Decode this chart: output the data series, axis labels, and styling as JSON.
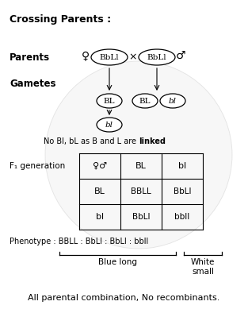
{
  "title": "Crossing Parents :",
  "bg_color": "#ffffff",
  "parents_label": "Parents",
  "gametes_label": "Gametes",
  "f1_label": "F₁ generation",
  "parent_genotype": "BbLl",
  "cross_symbol": "×",
  "gametes_left": [
    "BL",
    "bl"
  ],
  "gametes_right_1": "BL",
  "gametes_right_2": "bl",
  "linked_note_pre": "No Bl, bL as B and L are ",
  "linked_bold": "linked",
  "punnett_header": [
    "♀♂",
    "BL",
    "bl"
  ],
  "punnett_col0": [
    "BL",
    "bl"
  ],
  "punnett_cells": [
    [
      "BBLL",
      "BbLl"
    ],
    [
      "BbLl",
      "bbll"
    ]
  ],
  "phenotype_pre": "Phenotype : BBLL : BbLl : BbLl : bbll",
  "blue_long_label": "Blue long",
  "white_small_label": "White\nsmall",
  "bottom_note": "All parental combination, No recombinants."
}
